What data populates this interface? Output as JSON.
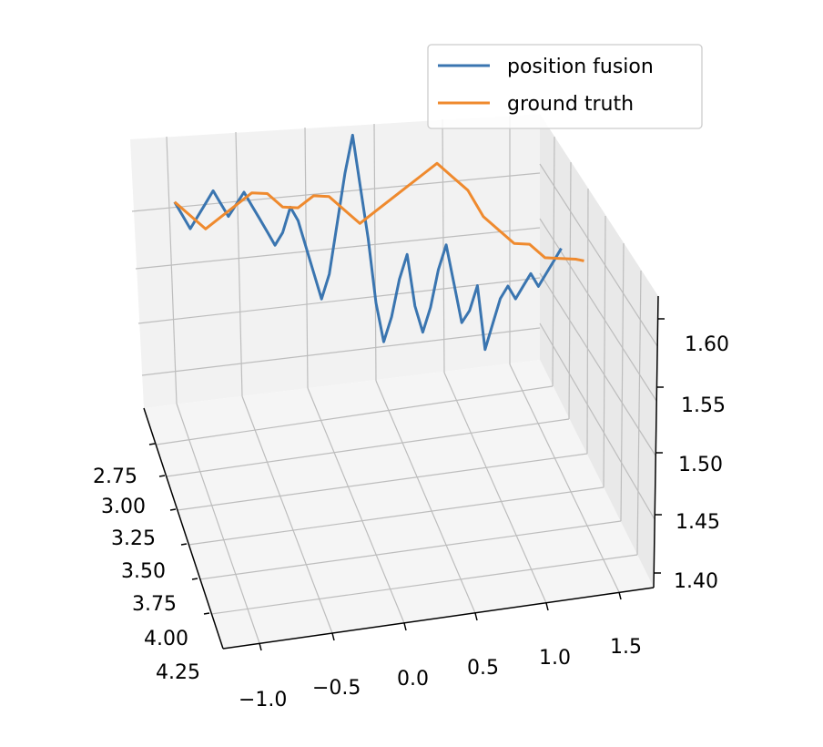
{
  "chart_data": {
    "type": "line",
    "projection": "3d",
    "grid": true,
    "legend_position": "top-right",
    "colors": {
      "position fusion": "#3a75b0",
      "ground truth": "#ef8a2e"
    },
    "axes": {
      "x": {
        "ticks": [
          "2.75",
          "3.00",
          "3.25",
          "3.50",
          "3.75",
          "4.00",
          "4.25"
        ],
        "range": [
          2.7,
          4.25
        ]
      },
      "y": {
        "ticks": [
          "−1.0",
          "−0.5",
          "0.0",
          "0.5",
          "1.0",
          "1.5"
        ],
        "range": [
          -1.2,
          1.7
        ]
      },
      "z": {
        "ticks": [
          "1.40",
          "1.45",
          "1.50",
          "1.55",
          "1.60"
        ],
        "range": [
          1.39,
          1.62
        ]
      }
    },
    "series": [
      {
        "name": "position fusion",
        "x": [
          2.9,
          2.93,
          2.96,
          2.98,
          3.0,
          3.02,
          3.04,
          3.06,
          3.09,
          3.12,
          3.15,
          3.17,
          3.2,
          3.23,
          3.25,
          3.27,
          3.3,
          3.33,
          3.36,
          3.39,
          3.42,
          3.45,
          3.48,
          3.5,
          3.53,
          3.56,
          3.59,
          3.62,
          3.65,
          3.68,
          3.71,
          3.74,
          3.77,
          3.8,
          3.83,
          3.86,
          3.89,
          3.92,
          3.95,
          3.98,
          4.0,
          4.02,
          4.04,
          4.06,
          4.08,
          4.1,
          4.12,
          4.14,
          4.16,
          4.18,
          4.2
        ],
        "y": [
          -1.05,
          -1.0,
          -0.95,
          -0.9,
          -0.85,
          -0.8,
          -0.75,
          -0.7,
          -0.65,
          -0.6,
          -0.55,
          -0.5,
          -0.45,
          -0.4,
          -0.35,
          -0.3,
          -0.25,
          -0.2,
          -0.15,
          -0.1,
          -0.05,
          0.0,
          0.05,
          0.1,
          0.15,
          0.2,
          0.25,
          0.3,
          0.35,
          0.4,
          0.45,
          0.5,
          0.55,
          0.6,
          0.65,
          0.7,
          0.75,
          0.8,
          0.85,
          0.9,
          0.95,
          1.0,
          1.05,
          1.1,
          1.15,
          1.2,
          1.25,
          1.3,
          1.35,
          1.4,
          1.45
        ],
        "z": [
          1.57,
          1.56,
          1.55,
          1.56,
          1.57,
          1.58,
          1.57,
          1.56,
          1.57,
          1.58,
          1.57,
          1.56,
          1.55,
          1.54,
          1.55,
          1.57,
          1.56,
          1.54,
          1.52,
          1.5,
          1.52,
          1.56,
          1.6,
          1.63,
          1.59,
          1.55,
          1.5,
          1.47,
          1.49,
          1.52,
          1.54,
          1.5,
          1.48,
          1.5,
          1.53,
          1.55,
          1.52,
          1.49,
          1.5,
          1.52,
          1.47,
          1.49,
          1.51,
          1.52,
          1.51,
          1.52,
          1.53,
          1.52,
          1.53,
          1.54,
          1.55
        ]
      },
      {
        "name": "ground truth",
        "x": [
          2.9,
          2.95,
          3.0,
          3.05,
          3.1,
          3.15,
          3.2,
          3.25,
          3.3,
          3.35,
          3.4,
          3.45,
          3.5,
          3.55,
          3.6,
          3.65,
          3.7,
          3.75,
          3.8,
          3.85,
          3.9,
          3.95,
          4.0,
          4.05,
          4.1,
          4.15,
          4.2,
          4.25
        ],
        "y": [
          -1.05,
          -0.95,
          -0.85,
          -0.75,
          -0.65,
          -0.55,
          -0.45,
          -0.35,
          -0.25,
          -0.15,
          -0.05,
          0.05,
          0.15,
          0.25,
          0.35,
          0.45,
          0.55,
          0.65,
          0.75,
          0.85,
          0.95,
          1.05,
          1.15,
          1.25,
          1.35,
          1.45,
          1.55,
          1.6
        ],
        "z": [
          1.57,
          1.56,
          1.55,
          1.56,
          1.57,
          1.58,
          1.58,
          1.57,
          1.57,
          1.58,
          1.58,
          1.57,
          1.56,
          1.57,
          1.58,
          1.59,
          1.6,
          1.61,
          1.6,
          1.59,
          1.57,
          1.56,
          1.55,
          1.55,
          1.54,
          1.54,
          1.54,
          1.54
        ]
      }
    ]
  }
}
